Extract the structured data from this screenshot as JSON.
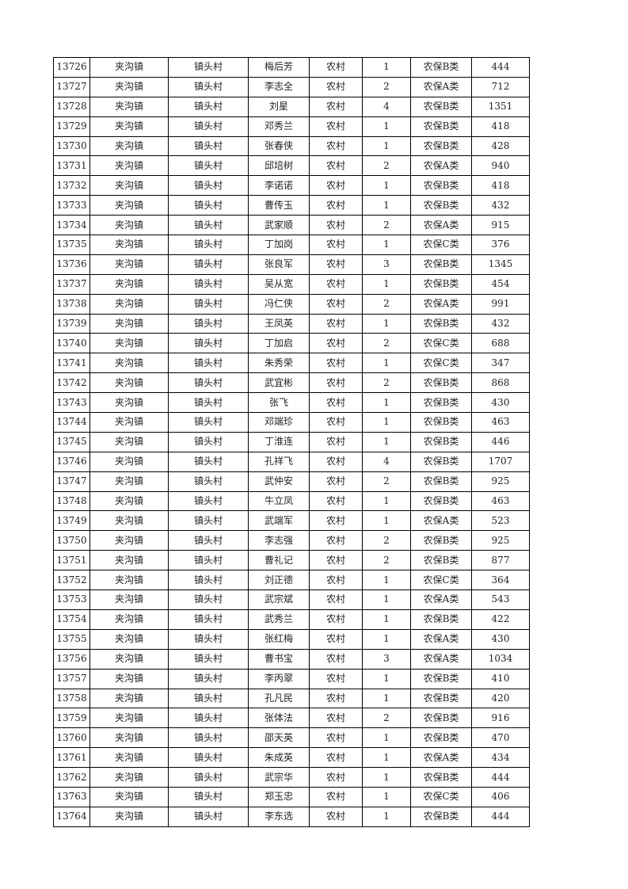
{
  "table": {
    "rows": [
      [
        "13726",
        "夹沟镇",
        "镇头村",
        "梅后芳",
        "农村",
        "1",
        "农保B类",
        "444"
      ],
      [
        "13727",
        "夹沟镇",
        "镇头村",
        "李志全",
        "农村",
        "2",
        "农保A类",
        "712"
      ],
      [
        "13728",
        "夹沟镇",
        "镇头村",
        "刘星",
        "农村",
        "4",
        "农保B类",
        "1351"
      ],
      [
        "13729",
        "夹沟镇",
        "镇头村",
        "邓秀兰",
        "农村",
        "1",
        "农保B类",
        "418"
      ],
      [
        "13730",
        "夹沟镇",
        "镇头村",
        "张春侠",
        "农村",
        "1",
        "农保B类",
        "428"
      ],
      [
        "13731",
        "夹沟镇",
        "镇头村",
        "邱培树",
        "农村",
        "2",
        "农保A类",
        "940"
      ],
      [
        "13732",
        "夹沟镇",
        "镇头村",
        "李诺诺",
        "农村",
        "1",
        "农保B类",
        "418"
      ],
      [
        "13733",
        "夹沟镇",
        "镇头村",
        "曹传玉",
        "农村",
        "1",
        "农保B类",
        "432"
      ],
      [
        "13734",
        "夹沟镇",
        "镇头村",
        "武家顺",
        "农村",
        "2",
        "农保A类",
        "915"
      ],
      [
        "13735",
        "夹沟镇",
        "镇头村",
        "丁加岗",
        "农村",
        "1",
        "农保C类",
        "376"
      ],
      [
        "13736",
        "夹沟镇",
        "镇头村",
        "张良军",
        "农村",
        "3",
        "农保B类",
        "1345"
      ],
      [
        "13737",
        "夹沟镇",
        "镇头村",
        "吴从宽",
        "农村",
        "1",
        "农保B类",
        "454"
      ],
      [
        "13738",
        "夹沟镇",
        "镇头村",
        "冯仁侠",
        "农村",
        "2",
        "农保A类",
        "991"
      ],
      [
        "13739",
        "夹沟镇",
        "镇头村",
        "王凤英",
        "农村",
        "1",
        "农保B类",
        "432"
      ],
      [
        "13740",
        "夹沟镇",
        "镇头村",
        "丁加启",
        "农村",
        "2",
        "农保C类",
        "688"
      ],
      [
        "13741",
        "夹沟镇",
        "镇头村",
        "朱秀荣",
        "农村",
        "1",
        "农保C类",
        "347"
      ],
      [
        "13742",
        "夹沟镇",
        "镇头村",
        "武宜彬",
        "农村",
        "2",
        "农保B类",
        "868"
      ],
      [
        "13743",
        "夹沟镇",
        "镇头村",
        "张飞",
        "农村",
        "1",
        "农保B类",
        "430"
      ],
      [
        "13744",
        "夹沟镇",
        "镇头村",
        "邓端珍",
        "农村",
        "1",
        "农保B类",
        "463"
      ],
      [
        "13745",
        "夹沟镇",
        "镇头村",
        "丁淮连",
        "农村",
        "1",
        "农保B类",
        "446"
      ],
      [
        "13746",
        "夹沟镇",
        "镇头村",
        "孔祥飞",
        "农村",
        "4",
        "农保B类",
        "1707"
      ],
      [
        "13747",
        "夹沟镇",
        "镇头村",
        "武仲安",
        "农村",
        "2",
        "农保B类",
        "925"
      ],
      [
        "13748",
        "夹沟镇",
        "镇头村",
        "牛立凤",
        "农村",
        "1",
        "农保B类",
        "463"
      ],
      [
        "13749",
        "夹沟镇",
        "镇头村",
        "武端军",
        "农村",
        "1",
        "农保A类",
        "523"
      ],
      [
        "13750",
        "夹沟镇",
        "镇头村",
        "李志强",
        "农村",
        "2",
        "农保B类",
        "925"
      ],
      [
        "13751",
        "夹沟镇",
        "镇头村",
        "曹礼记",
        "农村",
        "2",
        "农保B类",
        "877"
      ],
      [
        "13752",
        "夹沟镇",
        "镇头村",
        "刘正德",
        "农村",
        "1",
        "农保C类",
        "364"
      ],
      [
        "13753",
        "夹沟镇",
        "镇头村",
        "武宗斌",
        "农村",
        "1",
        "农保A类",
        "543"
      ],
      [
        "13754",
        "夹沟镇",
        "镇头村",
        "武秀兰",
        "农村",
        "1",
        "农保B类",
        "422"
      ],
      [
        "13755",
        "夹沟镇",
        "镇头村",
        "张红梅",
        "农村",
        "1",
        "农保A类",
        "430"
      ],
      [
        "13756",
        "夹沟镇",
        "镇头村",
        "曹书宝",
        "农村",
        "3",
        "农保A类",
        "1034"
      ],
      [
        "13757",
        "夹沟镇",
        "镇头村",
        "李丙翠",
        "农村",
        "1",
        "农保B类",
        "410"
      ],
      [
        "13758",
        "夹沟镇",
        "镇头村",
        "孔凡民",
        "农村",
        "1",
        "农保B类",
        "420"
      ],
      [
        "13759",
        "夹沟镇",
        "镇头村",
        "张体法",
        "农村",
        "2",
        "农保B类",
        "916"
      ],
      [
        "13760",
        "夹沟镇",
        "镇头村",
        "邵天英",
        "农村",
        "1",
        "农保B类",
        "470"
      ],
      [
        "13761",
        "夹沟镇",
        "镇头村",
        "朱成英",
        "农村",
        "1",
        "农保A类",
        "434"
      ],
      [
        "13762",
        "夹沟镇",
        "镇头村",
        "武宗华",
        "农村",
        "1",
        "农保B类",
        "444"
      ],
      [
        "13763",
        "夹沟镇",
        "镇头村",
        "郑玉忠",
        "农村",
        "1",
        "农保C类",
        "406"
      ],
      [
        "13764",
        "夹沟镇",
        "镇头村",
        "李东选",
        "农村",
        "1",
        "农保B类",
        "444"
      ]
    ]
  }
}
